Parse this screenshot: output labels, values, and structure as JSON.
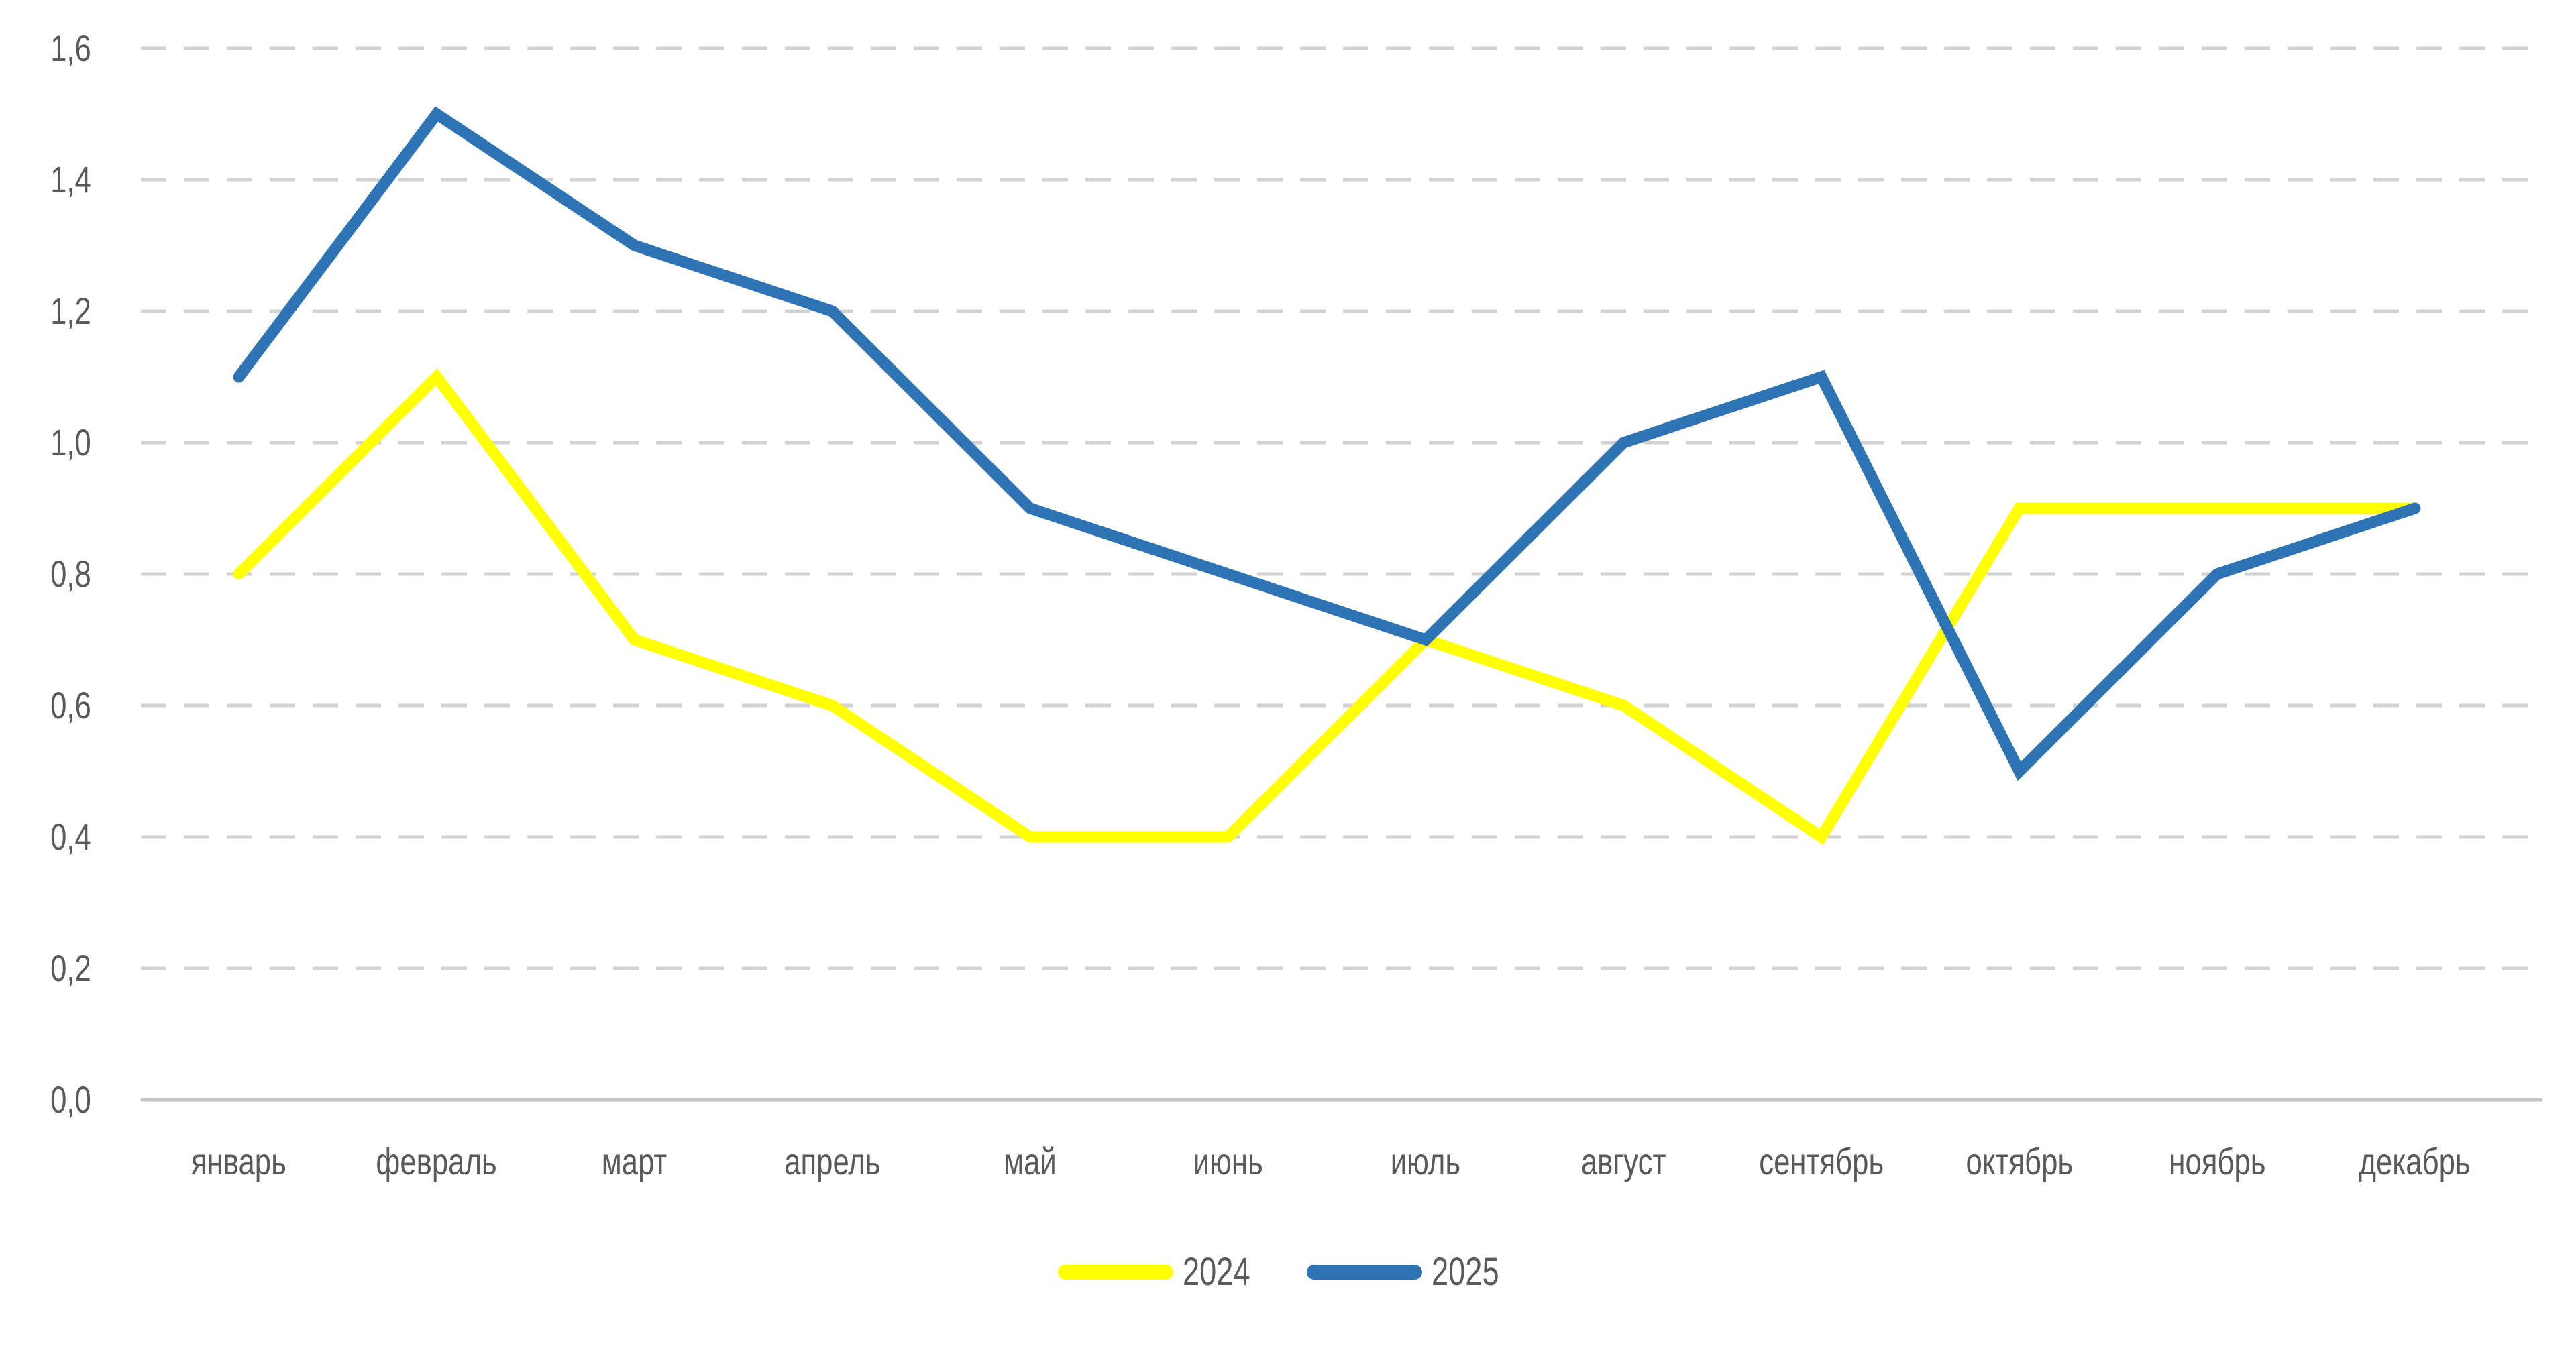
{
  "chart_data": {
    "type": "line",
    "categories": [
      "январь",
      "февраль",
      "март",
      "апрель",
      "май",
      "июнь",
      "июль",
      "август",
      "сентябрь",
      "октябрь",
      "ноябрь",
      "декабрь"
    ],
    "series": [
      {
        "name": "2024",
        "color": "#FFFF00",
        "values": [
          0.8,
          1.1,
          0.7,
          0.6,
          0.4,
          0.4,
          0.7,
          0.6,
          0.4,
          0.9,
          0.9,
          0.9
        ]
      },
      {
        "name": "2025",
        "color": "#2E74B5",
        "values": [
          1.1,
          1.5,
          1.3,
          1.2,
          0.9,
          0.8,
          0.7,
          1.0,
          1.1,
          0.5,
          0.8,
          0.9
        ]
      }
    ],
    "title": "",
    "xlabel": "",
    "ylabel": "",
    "ylim": [
      0.0,
      1.6
    ],
    "ytick_step": 0.2,
    "ytick_labels": [
      "0,0",
      "0,2",
      "0,4",
      "0,6",
      "0,8",
      "1,0",
      "1,2",
      "1,4",
      "1,6"
    ],
    "decimal_separator": ",",
    "grid": "horizontal-dashed",
    "legend_position": "bottom-center"
  },
  "style": {
    "gridline_color": "#D2D2D2",
    "axis_line_color": "#C6C6C6",
    "label_color": "#595959",
    "background": "#FFFFFF"
  }
}
